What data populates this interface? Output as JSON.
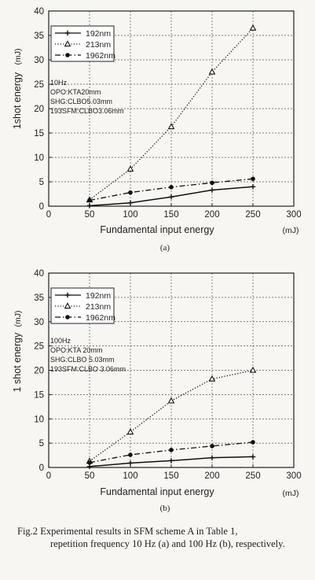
{
  "caption": {
    "label": "Fig.2",
    "line1": "Experimental results in SFM scheme A in Table 1,",
    "rest": "repetition frequency 10 Hz (a) and 100 Hz (b), respectively."
  },
  "chart_data": [
    {
      "type": "line",
      "panel_label": "(a)",
      "xlabel": "Fundamental input energy",
      "xunit": "(mJ)",
      "ylabel": "1shot energy",
      "yunit": "(mJ)",
      "xlim": [
        0,
        300
      ],
      "ylim": [
        0,
        40
      ],
      "xticks": [
        0,
        50,
        100,
        150,
        200,
        250,
        300
      ],
      "yticks": [
        0,
        5,
        10,
        15,
        20,
        25,
        30,
        35,
        40
      ],
      "grid": true,
      "legend_position": "top-left",
      "notes": [
        "10Hz",
        "OPO:KTA20mm",
        "SHG:CLBO5.03mm",
        "193SFM:CLBO3.06mm"
      ],
      "series": [
        {
          "name": "192nm",
          "style": "solid",
          "marker": "plus",
          "x": [
            50,
            100,
            150,
            200,
            250
          ],
          "y": [
            0.1,
            0.7,
            1.9,
            3.3,
            4.0
          ]
        },
        {
          "name": "213nm",
          "style": "dotted",
          "marker": "triangle",
          "x": [
            50,
            100,
            150,
            200,
            250
          ],
          "y": [
            1.3,
            7.6,
            16.3,
            27.5,
            36.5
          ]
        },
        {
          "name": "1962nm",
          "style": "dashdot",
          "marker": "circle",
          "x": [
            50,
            100,
            150,
            200,
            250
          ],
          "y": [
            1.2,
            2.8,
            3.9,
            4.8,
            5.6
          ]
        }
      ]
    },
    {
      "type": "line",
      "panel_label": "(b)",
      "xlabel": "Fundamental input energy",
      "xunit": "(mJ)",
      "ylabel": "1 shot energy",
      "yunit": "(mJ)",
      "xlim": [
        0,
        300
      ],
      "ylim": [
        0,
        40
      ],
      "xticks": [
        0,
        50,
        100,
        150,
        200,
        250,
        300
      ],
      "yticks": [
        0,
        5,
        10,
        15,
        20,
        25,
        30,
        35,
        40
      ],
      "grid": true,
      "legend_position": "top-left",
      "notes": [
        "100Hz",
        "OPO:KTA 20mm",
        "SHG:CLBO 5.03mm",
        "193SFM:CLBO 3.06mm"
      ],
      "series": [
        {
          "name": "192nm",
          "style": "solid",
          "marker": "plus",
          "x": [
            50,
            100,
            150,
            200,
            250
          ],
          "y": [
            0.2,
            0.9,
            1.4,
            2.0,
            2.2
          ]
        },
        {
          "name": "213nm",
          "style": "dotted",
          "marker": "triangle",
          "x": [
            50,
            100,
            150,
            200,
            250
          ],
          "y": [
            1.3,
            7.3,
            13.7,
            18.2,
            20.0
          ]
        },
        {
          "name": "1962nm",
          "style": "dashdot",
          "marker": "circle",
          "x": [
            50,
            100,
            150,
            200,
            250
          ],
          "y": [
            1.0,
            2.6,
            3.6,
            4.4,
            5.2
          ]
        }
      ]
    }
  ]
}
